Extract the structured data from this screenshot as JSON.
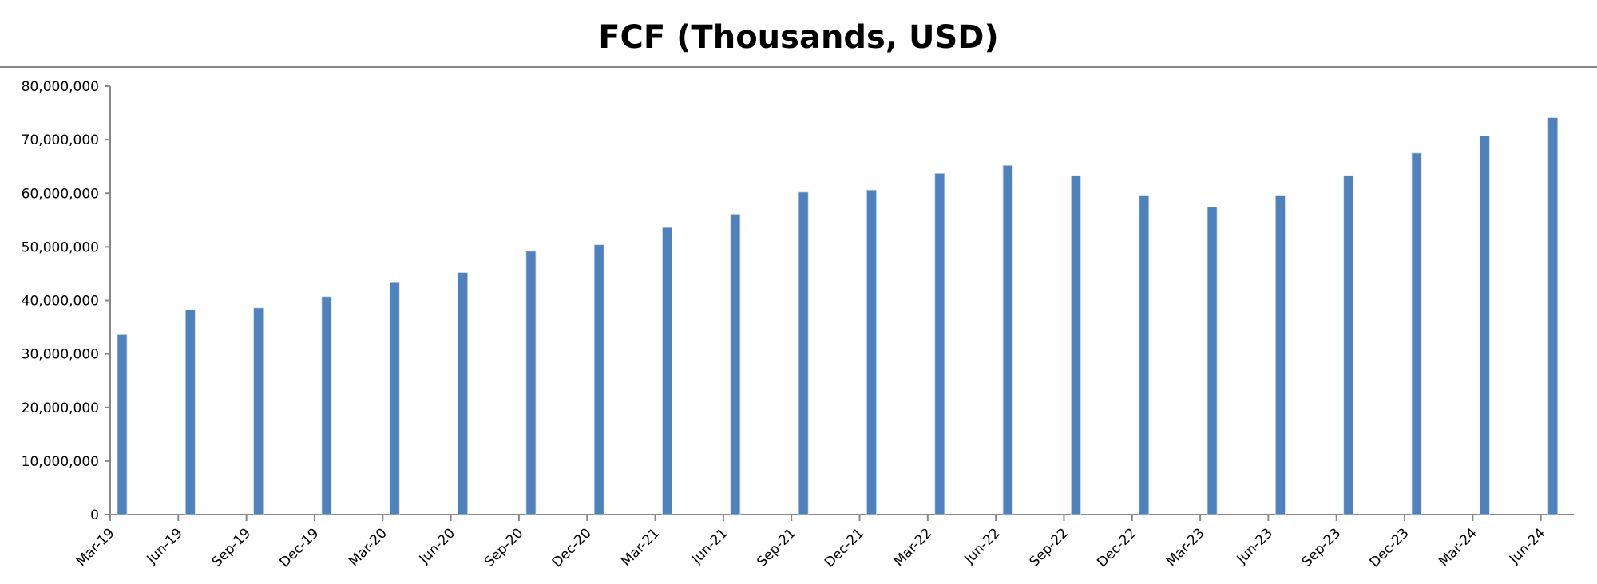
{
  "chart_data": {
    "type": "bar",
    "title": "FCF (Thousands, USD)",
    "xlabel": "",
    "ylabel": "",
    "ylim": [
      0,
      80000000
    ],
    "yticks": [
      "0",
      "10,000,000",
      "20,000,000",
      "30,000,000",
      "40,000,000",
      "50,000,000",
      "60,000,000",
      "70,000,000",
      "80,000,000"
    ],
    "grid": false,
    "legend": "none",
    "bar_color": "#4f81bd",
    "categories": [
      "Mar-19",
      "Jun-19",
      "Sep-19",
      "Dec-19",
      "Mar-20",
      "Jun-20",
      "Sep-20",
      "Dec-20",
      "Mar-21",
      "Jun-21",
      "Sep-21",
      "Dec-21",
      "Mar-22",
      "Jun-22",
      "Sep-22",
      "Dec-22",
      "Mar-23",
      "Jun-23",
      "Sep-23",
      "Dec-23",
      "Mar-24",
      "Jun-24"
    ],
    "values": [
      33600000,
      38200000,
      38600000,
      40700000,
      43300000,
      45200000,
      49200000,
      50400000,
      53600000,
      56100000,
      60200000,
      60600000,
      63700000,
      65200000,
      63300000,
      59500000,
      57400000,
      59500000,
      63300000,
      67500000,
      70700000,
      74100000
    ]
  }
}
